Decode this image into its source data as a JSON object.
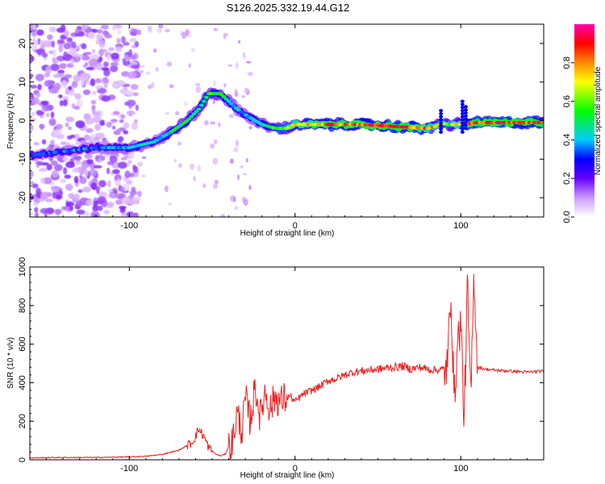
{
  "title": "S126.2025.332.19.44.G12",
  "chart_data": [
    {
      "type": "heatmap",
      "title": "S126.2025.332.19.44.G12",
      "xlabel": "Height of straight line (km)",
      "ylabel": "Frequency (Hz)",
      "xlim": [
        -160,
        150
      ],
      "ylim": [
        -25,
        25
      ],
      "xticks": [
        -100,
        0,
        100
      ],
      "yticks": [
        -20,
        -10,
        0,
        10,
        20
      ],
      "colorbar": {
        "label": "Normalized spectral amplitude",
        "range": [
          0,
          1
        ],
        "ticks": [
          "0.0",
          "0.2",
          "0.4",
          "0.6",
          "0.8"
        ],
        "colors": [
          "#ffffff",
          "#9900ff",
          "#0000ff",
          "#00ccff",
          "#00ff00",
          "#ffff00",
          "#ff8800",
          "#ff0000",
          "#ff00aa"
        ]
      },
      "ridge": {
        "description_points_x": [
          -160,
          -140,
          -120,
          -100,
          -95,
          -85,
          -75,
          -65,
          -58,
          -52,
          -45,
          -40,
          -35,
          -28,
          -20,
          -12,
          -5,
          0,
          20,
          40,
          60,
          80,
          85,
          88,
          92,
          100,
          110,
          130,
          150
        ],
        "description_points_y": [
          -9,
          -8,
          -7,
          -7,
          -6.5,
          -5.5,
          -3,
          0,
          3,
          7,
          7,
          5,
          3,
          1,
          -1,
          -2,
          -2,
          -1,
          -1,
          -1,
          -1.5,
          -2,
          -1.5,
          -0.5,
          -1,
          -1,
          -0.5,
          -0.5,
          -0.5
        ],
        "amplitude": [
          0.3,
          0.35,
          0.35,
          0.4,
          0.45,
          0.4,
          0.45,
          0.5,
          0.5,
          0.55,
          0.5,
          0.45,
          0.4,
          0.4,
          0.45,
          0.55,
          0.6,
          0.75,
          0.85,
          0.85,
          0.9,
          0.8,
          0.7,
          0.6,
          0.6,
          0.75,
          0.9,
          0.9,
          0.85
        ]
      }
    },
    {
      "type": "line",
      "xlabel": "Height of straight line (km)",
      "ylabel": "SNR (10 * v/v)",
      "xlim": [
        -160,
        150
      ],
      "ylim": [
        0,
        1000
      ],
      "xticks": [
        -100,
        0,
        100
      ],
      "yticks": [
        0,
        200,
        400,
        600,
        800,
        1000
      ],
      "color": "#ee2222",
      "series": [
        {
          "name": "SNR",
          "x": [
            -160,
            -140,
            -120,
            -100,
            -90,
            -80,
            -70,
            -62,
            -58,
            -55,
            -52,
            -48,
            -45,
            -42,
            -40,
            -38,
            -35,
            -32,
            -30,
            -27,
            -24,
            -21,
            -18,
            -15,
            -12,
            -9,
            -6,
            -3,
            0,
            5,
            10,
            15,
            20,
            25,
            30,
            35,
            40,
            45,
            50,
            55,
            60,
            65,
            70,
            75,
            80,
            85,
            90,
            92,
            94,
            96,
            98,
            100,
            102,
            104,
            106,
            108,
            110,
            115,
            120,
            130,
            140,
            150
          ],
          "y": [
            10,
            12,
            12,
            15,
            18,
            28,
            50,
            90,
            160,
            120,
            60,
            30,
            20,
            30,
            70,
            80,
            240,
            150,
            320,
            200,
            380,
            220,
            360,
            260,
            330,
            300,
            320,
            330,
            300,
            340,
            360,
            380,
            410,
            420,
            440,
            455,
            460,
            465,
            470,
            475,
            480,
            485,
            470,
            480,
            470,
            465,
            470,
            480,
            900,
            300,
            600,
            720,
            200,
            900,
            300,
            980,
            480,
            470,
            465,
            460,
            455,
            460
          ]
        }
      ]
    }
  ]
}
